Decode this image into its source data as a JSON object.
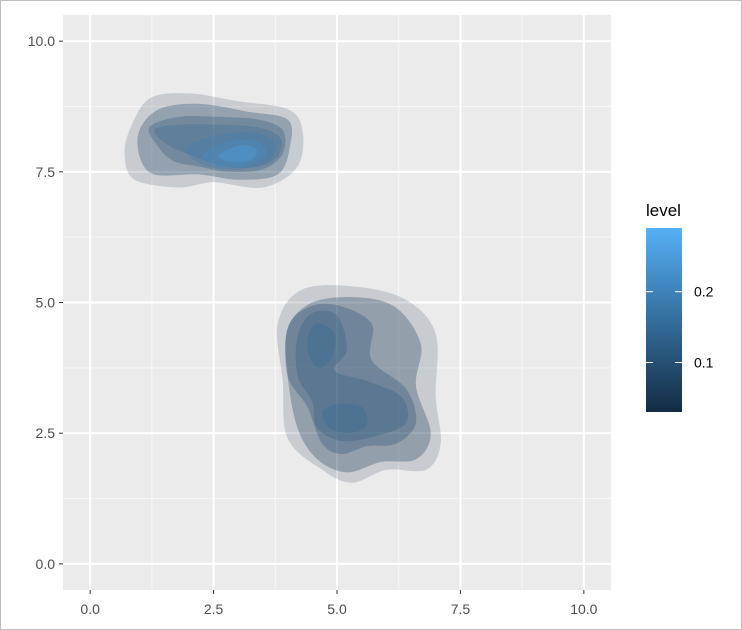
{
  "chart_data": {
    "type": "density2d_filled",
    "x": {
      "ticks": [
        0.0,
        2.5,
        5.0,
        7.5,
        10.0
      ],
      "tick_labels": [
        "0.0",
        "2.5",
        "5.0",
        "7.5",
        "10.0"
      ],
      "lim": [
        -0.55,
        10.55
      ]
    },
    "y": {
      "ticks": [
        0.0,
        2.5,
        5.0,
        7.5,
        10.0
      ],
      "tick_labels": [
        "0.0",
        "2.5",
        "5.0",
        "7.5",
        "10.0"
      ],
      "lim": [
        -0.5,
        10.5
      ]
    },
    "grid": true,
    "panel_background": "#ebebeb",
    "legend": {
      "title": "level",
      "placement": "right",
      "range": [
        0.03,
        0.29
      ],
      "ticks": [
        0.1,
        0.2
      ],
      "tick_labels": [
        "0.1",
        "0.2"
      ],
      "colors": {
        "low": "#132b43",
        "high": "#56b1f7"
      }
    },
    "clusters": [
      {
        "name": "upper-left",
        "peak": {
          "x": 3.0,
          "y": 7.8,
          "level": 0.28
        },
        "bands": [
          {
            "level": 0.03,
            "points": [
              [
                0.8,
                8.3
              ],
              [
                1.2,
                8.9
              ],
              [
                2.0,
                9.0
              ],
              [
                3.0,
                8.85
              ],
              [
                4.0,
                8.7
              ],
              [
                4.3,
                8.3
              ],
              [
                4.2,
                7.6
              ],
              [
                3.5,
                7.2
              ],
              [
                2.5,
                7.3
              ],
              [
                1.8,
                7.2
              ],
              [
                0.9,
                7.35
              ],
              [
                0.7,
                7.8
              ]
            ]
          },
          {
            "level": 0.07,
            "points": [
              [
                1.0,
                8.3
              ],
              [
                1.4,
                8.7
              ],
              [
                2.2,
                8.8
              ],
              [
                3.2,
                8.65
              ],
              [
                4.0,
                8.5
              ],
              [
                4.05,
                8.0
              ],
              [
                3.8,
                7.45
              ],
              [
                3.0,
                7.35
              ],
              [
                2.2,
                7.45
              ],
              [
                1.3,
                7.45
              ],
              [
                1.0,
                7.8
              ]
            ]
          },
          {
            "level": 0.11,
            "points": [
              [
                1.2,
                8.35
              ],
              [
                1.8,
                8.55
              ],
              [
                2.6,
                8.55
              ],
              [
                3.4,
                8.5
              ],
              [
                3.9,
                8.3
              ],
              [
                3.9,
                7.85
              ],
              [
                3.5,
                7.55
              ],
              [
                2.8,
                7.5
              ],
              [
                2.2,
                7.6
              ],
              [
                1.7,
                7.7
              ],
              [
                1.4,
                7.95
              ]
            ]
          },
          {
            "level": 0.15,
            "points": [
              [
                1.3,
                8.3
              ],
              [
                1.8,
                8.4
              ],
              [
                2.6,
                8.4
              ],
              [
                3.4,
                8.35
              ],
              [
                3.85,
                8.15
              ],
              [
                3.8,
                7.8
              ],
              [
                3.4,
                7.6
              ],
              [
                2.7,
                7.6
              ],
              [
                2.1,
                7.8
              ],
              [
                1.6,
                8.0
              ]
            ]
          },
          {
            "level": 0.19,
            "points": [
              [
                2.0,
                8.0
              ],
              [
                2.6,
                8.2
              ],
              [
                3.3,
                8.25
              ],
              [
                3.75,
                8.05
              ],
              [
                3.6,
                7.7
              ],
              [
                3.0,
                7.55
              ],
              [
                2.4,
                7.6
              ],
              [
                2.0,
                7.8
              ]
            ]
          },
          {
            "level": 0.23,
            "points": [
              [
                2.3,
                7.85
              ],
              [
                2.9,
                8.1
              ],
              [
                3.45,
                8.05
              ],
              [
                3.55,
                7.8
              ],
              [
                3.1,
                7.6
              ],
              [
                2.55,
                7.62
              ]
            ]
          },
          {
            "level": 0.27,
            "points": [
              [
                2.6,
                7.8
              ],
              [
                3.0,
                8.0
              ],
              [
                3.35,
                7.95
              ],
              [
                3.3,
                7.75
              ],
              [
                2.95,
                7.68
              ]
            ]
          }
        ]
      },
      {
        "name": "lower-right",
        "peak": {
          "x": 5.1,
          "y": 2.75,
          "level": 0.15
        },
        "bands": [
          {
            "level": 0.03,
            "points": [
              [
                3.8,
                4.6
              ],
              [
                4.3,
                5.25
              ],
              [
                5.4,
                5.3
              ],
              [
                6.4,
                5.05
              ],
              [
                7.0,
                4.4
              ],
              [
                7.0,
                3.2
              ],
              [
                7.1,
                2.3
              ],
              [
                6.8,
                1.8
              ],
              [
                6.0,
                1.8
              ],
              [
                5.3,
                1.55
              ],
              [
                4.7,
                1.8
              ],
              [
                4.0,
                2.4
              ],
              [
                3.9,
                3.5
              ]
            ]
          },
          {
            "level": 0.06,
            "points": [
              [
                4.0,
                4.5
              ],
              [
                4.5,
                5.0
              ],
              [
                5.4,
                5.1
              ],
              [
                6.2,
                4.9
              ],
              [
                6.7,
                4.2
              ],
              [
                6.6,
                3.4
              ],
              [
                6.9,
                2.5
              ],
              [
                6.6,
                2.0
              ],
              [
                5.9,
                1.95
              ],
              [
                5.2,
                1.75
              ],
              [
                4.6,
                2.0
              ],
              [
                4.2,
                2.6
              ],
              [
                4.0,
                3.6
              ]
            ]
          },
          {
            "level": 0.09,
            "points": [
              [
                4.0,
                4.5
              ],
              [
                4.4,
                4.9
              ],
              [
                5.0,
                4.95
              ],
              [
                5.7,
                4.6
              ],
              [
                5.7,
                3.9
              ],
              [
                6.4,
                3.35
              ],
              [
                6.6,
                2.7
              ],
              [
                6.2,
                2.3
              ],
              [
                5.6,
                2.25
              ],
              [
                5.1,
                2.1
              ],
              [
                4.7,
                2.3
              ],
              [
                4.4,
                3.0
              ],
              [
                4.0,
                3.6
              ]
            ]
          },
          {
            "level": 0.12,
            "points": [
              [
                4.2,
                4.35
              ],
              [
                4.5,
                4.8
              ],
              [
                5.0,
                4.75
              ],
              [
                5.2,
                4.1
              ],
              [
                4.95,
                3.7
              ],
              [
                5.6,
                3.5
              ],
              [
                6.3,
                3.2
              ],
              [
                6.4,
                2.7
              ],
              [
                5.8,
                2.45
              ],
              [
                5.1,
                2.35
              ],
              [
                4.6,
                2.6
              ],
              [
                4.5,
                3.1
              ],
              [
                4.2,
                3.6
              ]
            ]
          },
          {
            "level": 0.145,
            "points": [
              [
                4.4,
                4.3
              ],
              [
                4.6,
                4.6
              ],
              [
                4.95,
                4.4
              ],
              [
                4.9,
                3.95
              ],
              [
                4.65,
                3.75
              ],
              [
                4.45,
                3.95
              ]
            ]
          },
          {
            "level": 0.15,
            "points": [
              [
                4.7,
                2.9
              ],
              [
                5.0,
                3.05
              ],
              [
                5.5,
                3.0
              ],
              [
                5.6,
                2.65
              ],
              [
                5.25,
                2.5
              ],
              [
                4.85,
                2.6
              ]
            ]
          }
        ]
      }
    ]
  }
}
